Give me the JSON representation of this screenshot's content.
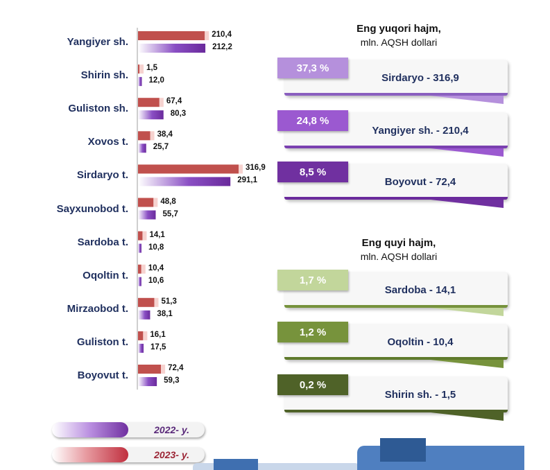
{
  "chart_data": {
    "type": "bar",
    "orientation": "horizontal",
    "categories": [
      "Yangiyer sh.",
      "Shirin sh.",
      "Guliston sh.",
      "Xovos t.",
      "Sirdaryo t.",
      "Sayxunobod t.",
      "Sardoba t.",
      "Oqoltin t.",
      "Mirzaobod t.",
      "Guliston t.",
      "Boyovut t."
    ],
    "series": [
      {
        "name": "2023- y.",
        "color": "#c0504d",
        "values": [
          210.4,
          1.5,
          67.4,
          38.4,
          316.9,
          48.8,
          14.1,
          10.4,
          51.3,
          16.1,
          72.4
        ],
        "labels": [
          "210,4",
          "1,5",
          "67,4",
          "38,4",
          "316,9",
          "48,8",
          "14,1",
          "10,4",
          "51,3",
          "16,1",
          "72,4"
        ]
      },
      {
        "name": "2022- y.",
        "color": "#7030a0",
        "values": [
          212.2,
          12.0,
          80.3,
          25.7,
          291.1,
          55.7,
          10.8,
          10.6,
          38.1,
          17.5,
          59.3
        ],
        "labels": [
          "212,2",
          "12,0",
          "80,3",
          "25,7",
          "291,1",
          "55,7",
          "10,8",
          "10,6",
          "38,1",
          "17,5",
          "59,3"
        ]
      }
    ],
    "xlim": [
      0,
      320
    ],
    "grid": false,
    "legend": "bottom-left"
  },
  "legend": {
    "items": [
      {
        "label": "2022- y.",
        "color": "#7030a0",
        "text_color": "#5a2a7a"
      },
      {
        "label": "2023- y.",
        "color": "#c0504d",
        "text_color": "#9b2535"
      }
    ]
  },
  "top_panel": {
    "title": "Eng yuqori hajm,",
    "subtitle": "mln. AQSH dollari",
    "items": [
      {
        "share": "37,3 %",
        "label": "Sirdaryo - 316,9",
        "color": "#b590dc"
      },
      {
        "share": "24,8 %",
        "label": "Yangiyer sh. - 210,4",
        "color": "#9b59d0"
      },
      {
        "share": "8,5 %",
        "label": "Boyovut - 72,4",
        "color": "#7030a0"
      }
    ]
  },
  "bottom_panel": {
    "title": "Eng quyi hajm,",
    "subtitle": "mln. AQSH dollari",
    "items": [
      {
        "share": "1,7 %",
        "label": "Sardoba - 14,1",
        "color": "#c2d69b"
      },
      {
        "share": "1,2 %",
        "label": "Oqoltin - 10,4",
        "color": "#77933c"
      },
      {
        "share": "0,2 %",
        "label": "Shirin sh. - 1,5",
        "color": "#4f6228"
      }
    ]
  }
}
